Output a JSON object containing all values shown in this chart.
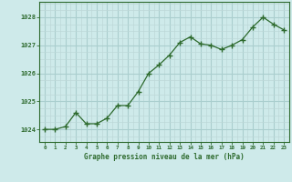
{
  "x": [
    0,
    1,
    2,
    3,
    4,
    5,
    6,
    7,
    8,
    9,
    10,
    11,
    12,
    13,
    14,
    15,
    16,
    17,
    18,
    19,
    20,
    21,
    22,
    23
  ],
  "y": [
    1024.0,
    1024.0,
    1024.1,
    1024.6,
    1024.2,
    1024.2,
    1024.4,
    1024.85,
    1024.85,
    1025.35,
    1026.0,
    1026.3,
    1026.65,
    1027.1,
    1027.3,
    1027.05,
    1027.0,
    1026.85,
    1027.0,
    1027.2,
    1027.65,
    1028.0,
    1027.75,
    1027.55
  ],
  "line_color": "#2d6a2d",
  "marker_color": "#2d6a2d",
  "bg_color": "#ceeaea",
  "grid_major_color": "#aacece",
  "grid_minor_color": "#bdd8d8",
  "axis_color": "#2d6a2d",
  "xlabel": "Graphe pression niveau de la mer (hPa)",
  "ytick_values": [
    1024,
    1025,
    1026,
    1027,
    1028
  ],
  "ylim": [
    1023.55,
    1028.55
  ],
  "xlim": [
    -0.5,
    23.5
  ],
  "xtick_values": [
    0,
    1,
    2,
    3,
    4,
    5,
    6,
    7,
    8,
    9,
    10,
    11,
    12,
    13,
    14,
    15,
    16,
    17,
    18,
    19,
    20,
    21,
    22,
    23
  ]
}
